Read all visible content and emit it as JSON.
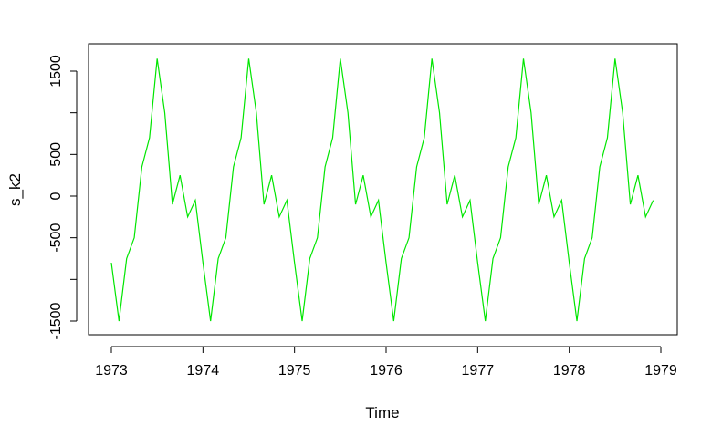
{
  "chart_data": {
    "type": "line",
    "xlabel": "Time",
    "ylabel": "s_k2",
    "xlim": [
      1973,
      1979
    ],
    "ylim": [
      -1600,
      1700
    ],
    "x_ticks": [
      1973,
      1974,
      1975,
      1976,
      1977,
      1978,
      1979
    ],
    "x_tick_labels": [
      "1973",
      "1974",
      "1975",
      "1976",
      "1977",
      "1978",
      "1979"
    ],
    "y_ticks": [
      -1500,
      -1000,
      -500,
      0,
      500,
      1000,
      1500
    ],
    "y_tick_labels": [
      "-1500",
      "",
      "-500",
      "0",
      "500",
      "",
      "1500"
    ],
    "grid": false,
    "colors": {
      "series": "#00e600",
      "axis": "#000000",
      "background": "#ffffff"
    },
    "series": [
      {
        "start": 1973,
        "frequency": 12,
        "seasonal_pattern": [
          -800,
          -1500,
          -750,
          -500,
          350,
          700,
          1650,
          1000,
          -100,
          250,
          -250,
          -50
        ],
        "cycles": 6,
        "values": [
          -800,
          -1500,
          -750,
          -500,
          350,
          700,
          1650,
          1000,
          -100,
          250,
          -250,
          -50,
          -800,
          -1500,
          -750,
          -500,
          350,
          700,
          1650,
          1000,
          -100,
          250,
          -250,
          -50,
          -800,
          -1500,
          -750,
          -500,
          350,
          700,
          1650,
          1000,
          -100,
          250,
          -250,
          -50,
          -800,
          -1500,
          -750,
          -500,
          350,
          700,
          1650,
          1000,
          -100,
          250,
          -250,
          -50,
          -800,
          -1500,
          -750,
          -500,
          350,
          700,
          1650,
          1000,
          -100,
          250,
          -250,
          -50,
          -800,
          -1500,
          -750,
          -500,
          350,
          700,
          1650,
          1000,
          -100,
          250,
          -250,
          -50
        ]
      }
    ]
  }
}
